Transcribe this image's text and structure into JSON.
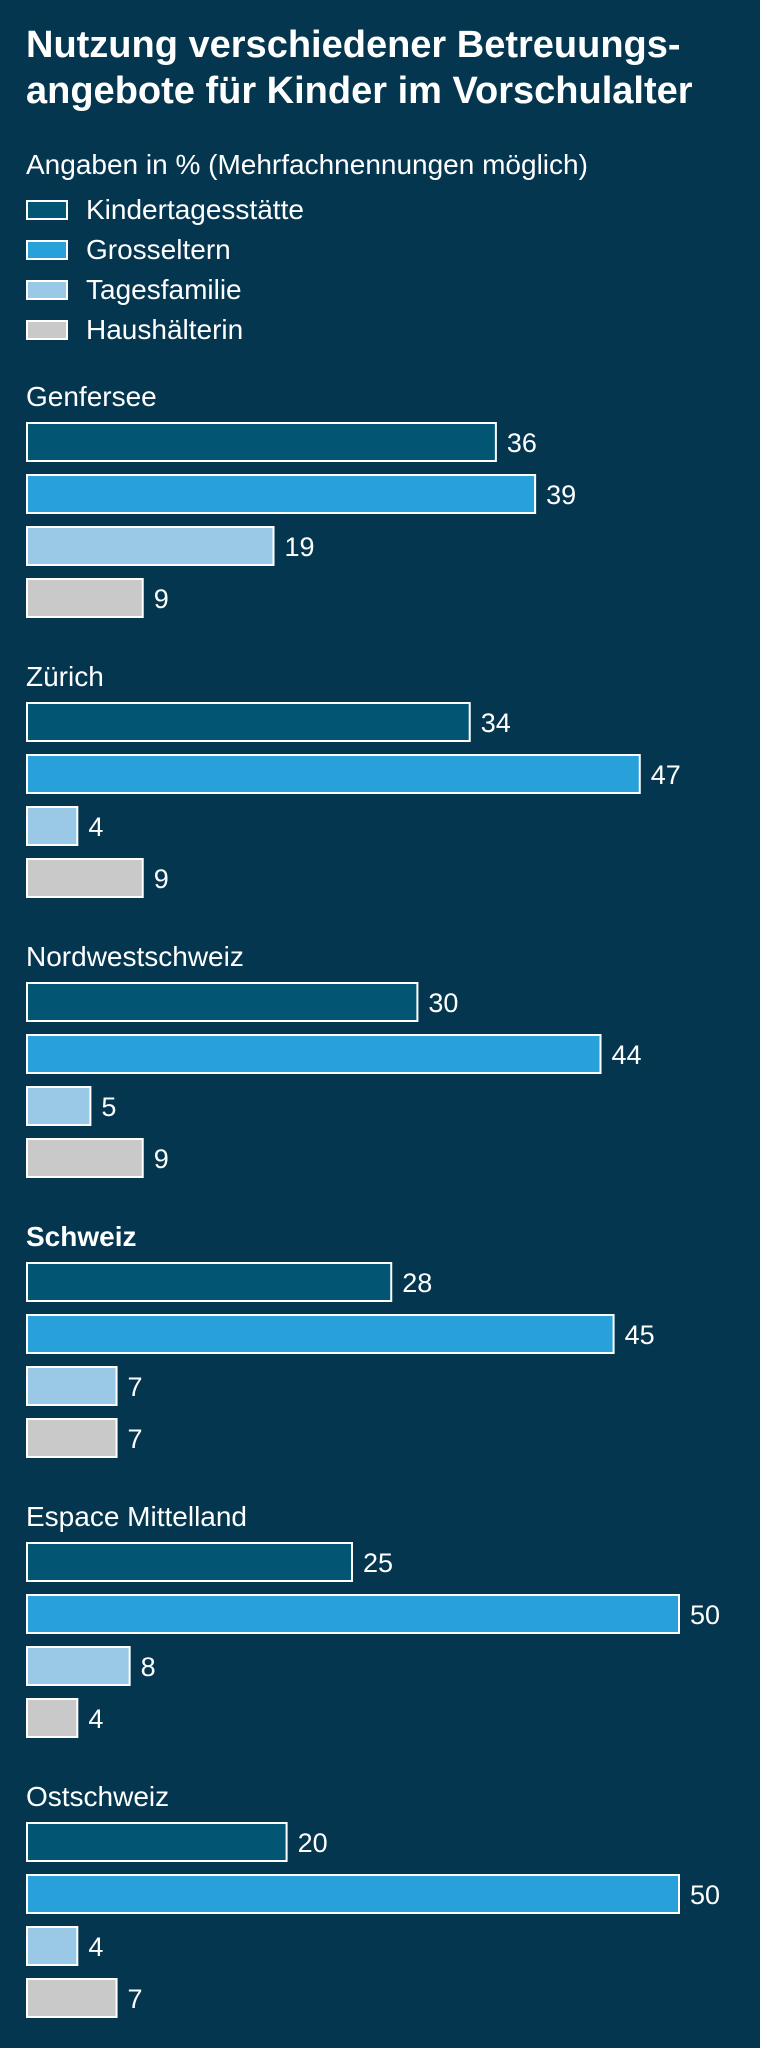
{
  "chart_data": {
    "type": "bar",
    "orientation": "horizontal",
    "title": [
      "Nutzung verschiedener Betreuungs-",
      "angebote für Kinder im Vorschulalter"
    ],
    "subtitle": "Angaben in % (Mehrfachnennungen möglich)",
    "xlim": [
      0,
      50
    ],
    "grid": false,
    "legend_position": "top-left",
    "series": [
      {
        "name": "Kindertagesstätte",
        "color": "#035673"
      },
      {
        "name": "Grosseltern",
        "color": "#28a0d9"
      },
      {
        "name": "Tagesfamilie",
        "color": "#9ac8e7"
      },
      {
        "name": "Haushälterin",
        "color": "#c9c9c9"
      }
    ],
    "groups": [
      {
        "label": "Genfersee",
        "bold": false,
        "values": [
          36,
          39,
          19,
          9
        ]
      },
      {
        "label": "Zürich",
        "bold": false,
        "values": [
          34,
          47,
          4,
          9
        ]
      },
      {
        "label": "Nordwestschweiz",
        "bold": false,
        "values": [
          30,
          44,
          5,
          9
        ]
      },
      {
        "label": "Schweiz",
        "bold": true,
        "values": [
          28,
          45,
          7,
          7
        ]
      },
      {
        "label": "Espace Mittelland",
        "bold": false,
        "values": [
          25,
          50,
          8,
          4
        ]
      },
      {
        "label": "Ostschweiz",
        "bold": false,
        "values": [
          20,
          50,
          4,
          7
        ]
      }
    ]
  }
}
